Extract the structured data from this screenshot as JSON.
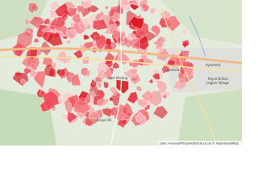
{
  "map": {
    "labels": [
      "Larkfield",
      "Aylesford",
      "Royal British",
      "Legion Village",
      "East Malling",
      "Kings Hill"
    ],
    "attribution": "Data: HouseofPricesHistorical.co.uk © OpenStreetMap"
  }
}
